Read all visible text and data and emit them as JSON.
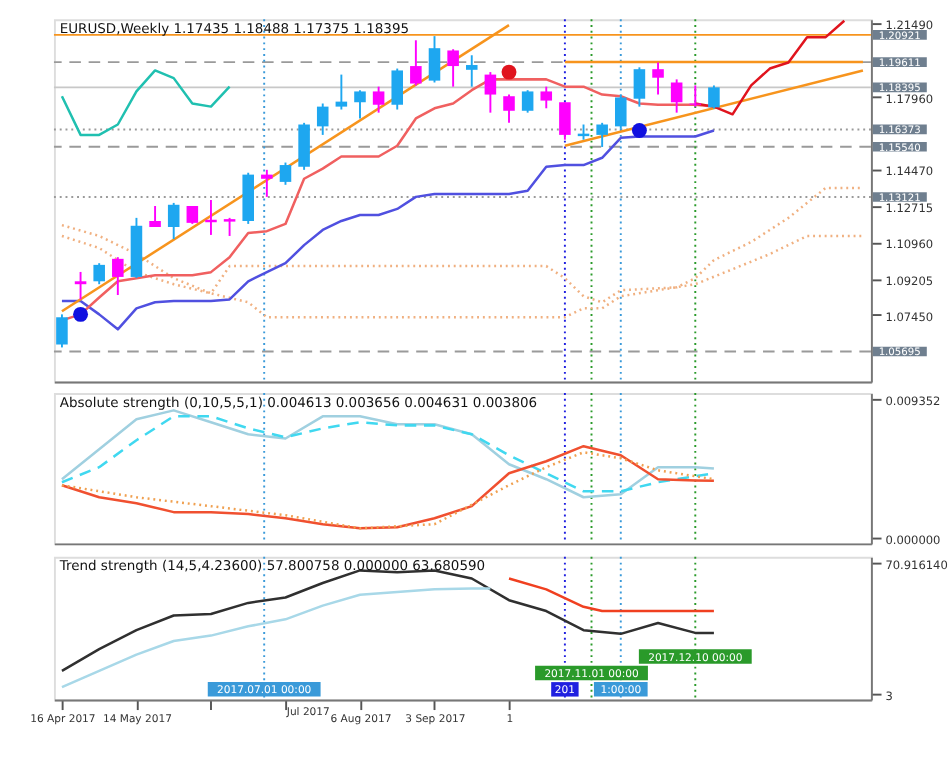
{
  "chart_data": [
    {
      "type": "candlestick",
      "title": "EURUSD,Weekly  1.17435 1.18488 1.17375 1.18395",
      "x": [
        "2017-04-16",
        "2017-04-23",
        "2017-04-30",
        "2017-05-07",
        "2017-05-14",
        "2017-05-21",
        "2017-05-28",
        "2017-06-04",
        "2017-06-11",
        "2017-06-18",
        "2017-06-25",
        "2017-07-02",
        "2017-07-09",
        "2017-07-16",
        "2017-07-23",
        "2017-07-30",
        "2017-08-06",
        "2017-08-13",
        "2017-08-20",
        "2017-08-27",
        "2017-09-03",
        "2017-09-10",
        "2017-09-17",
        "2017-09-24",
        "2017-10-01",
        "2017-10-08",
        "2017-10-15",
        "2017-10-22",
        "2017-10-29",
        "2017-11-05",
        "2017-11-12",
        "2017-11-19",
        "2017-11-26",
        "2017-12-03",
        "2017-12-10",
        "2017-12-17"
      ],
      "ohlc": [
        [
          1.0603,
          1.0748,
          1.0589,
          1.0734
        ],
        [
          1.0907,
          1.0952,
          1.082,
          1.0893
        ],
        [
          1.0907,
          1.0994,
          1.0893,
          1.0986
        ],
        [
          1.1015,
          1.1023,
          1.0841,
          1.0928
        ],
        [
          1.0928,
          1.1212,
          1.0923,
          1.1174
        ],
        [
          1.1197,
          1.1269,
          1.1168,
          1.1168
        ],
        [
          1.1168,
          1.1284,
          1.111,
          1.1275
        ],
        [
          1.1269,
          1.1269,
          1.1183,
          1.1188
        ],
        [
          1.1203,
          1.1298,
          1.113,
          1.1191
        ],
        [
          1.1206,
          1.1212,
          1.1125,
          1.1194
        ],
        [
          1.1197,
          1.1429,
          1.1183,
          1.142
        ],
        [
          1.142,
          1.1443,
          1.1313,
          1.14
        ],
        [
          1.1385,
          1.1478,
          1.1371,
          1.1466
        ],
        [
          1.1458,
          1.1669,
          1.1443,
          1.1661
        ],
        [
          1.1652,
          1.1762,
          1.1611,
          1.1747
        ],
        [
          1.1747,
          1.1901,
          1.1733,
          1.1771
        ],
        [
          1.1768,
          1.1826,
          1.169,
          1.182
        ],
        [
          1.182,
          1.1843,
          1.1718,
          1.1756
        ],
        [
          1.1756,
          1.193,
          1.1733,
          1.1921
        ],
        [
          1.1942,
          1.2066,
          1.1849,
          1.1858
        ],
        [
          1.1872,
          1.2086,
          1.1863,
          1.2028
        ],
        [
          1.2017,
          1.2023,
          1.1843,
          1.1942
        ],
        [
          1.1924,
          1.1994,
          1.1843,
          1.1947
        ],
        [
          1.1901,
          1.1913,
          1.1718,
          1.1805
        ],
        [
          1.1797,
          1.1805,
          1.1669,
          1.1727
        ],
        [
          1.1727,
          1.1826,
          1.1718,
          1.182
        ],
        [
          1.182,
          1.1843,
          1.1739,
          1.1776
        ],
        [
          1.1768,
          1.1768,
          1.1588,
          1.1611
        ],
        [
          1.1605,
          1.1661,
          1.1588,
          1.1617
        ],
        [
          1.1611,
          1.1669,
          1.1553,
          1.1661
        ],
        [
          1.1652,
          1.1805,
          1.164,
          1.1791
        ],
        [
          1.1785,
          1.1936,
          1.1747,
          1.1927
        ],
        [
          1.1927,
          1.1959,
          1.1805,
          1.1886
        ],
        [
          1.1863,
          1.1878,
          1.1718,
          1.1768
        ],
        [
          1.1762,
          1.1849,
          1.1747,
          1.1756
        ],
        [
          1.17435,
          1.18488,
          1.17375,
          1.18395
        ]
      ],
      "colors": [
        "#1ea7f0",
        "#ff00ff",
        "#1ea7f0",
        "#ff00ff",
        "#1ea7f0",
        "#ff00ff",
        "#1ea7f0",
        "#ff00ff",
        "#ff00ff",
        "#ff00ff",
        "#1ea7f0",
        "#ff00ff",
        "#1ea7f0",
        "#1ea7f0",
        "#1ea7f0",
        "#1ea7f0",
        "#1ea7f0",
        "#ff00ff",
        "#1ea7f0",
        "#ff00ff",
        "#1ea7f0",
        "#ff00ff",
        "#1ea7f0",
        "#ff00ff",
        "#ff00ff",
        "#1ea7f0",
        "#ff00ff",
        "#ff00ff",
        "#1ea7f0",
        "#1ea7f0",
        "#1ea7f0",
        "#1ea7f0",
        "#ff00ff",
        "#ff00ff",
        "#ff00ff",
        "#1ea7f0"
      ],
      "series": [
        {
          "type": "line",
          "line_style": "dotted",
          "color": "#f0b080",
          "x": [
            "2017-04-16",
            "2017-04-30",
            "2017-05-14",
            "2017-05-28",
            "2017-06-11",
            "2017-06-18",
            "2017-10-15",
            "2017-10-22",
            "2017-10-29",
            "2017-11-05",
            "2017-11-12",
            "2017-12-03",
            "2017-12-10",
            "2017-12-17",
            "2017-12-31",
            "2018-01-14",
            "2018-01-28",
            "2018-02-11"
          ],
          "values": [
            1.1177,
            1.1125,
            1.1038,
            1.0922,
            1.0849,
            1.098,
            1.098,
            1.0922,
            1.0835,
            1.0806,
            1.0864,
            1.0878,
            1.0922,
            1.1009,
            1.1096,
            1.1212,
            1.1356,
            1.1356
          ]
        },
        {
          "type": "line",
          "line_style": "dotted",
          "color": "#f0b080",
          "x": [
            "2017-04-16",
            "2017-04-30",
            "2017-05-14",
            "2017-05-28",
            "2017-06-11",
            "2017-06-25",
            "2017-07-02",
            "2017-10-22",
            "2017-10-29",
            "2017-11-05",
            "2017-11-12",
            "2017-11-26",
            "2017-12-10",
            "2017-12-24",
            "2018-01-07",
            "2018-01-21",
            "2018-02-11"
          ],
          "values": [
            1.1125,
            1.1067,
            1.0951,
            1.0893,
            1.0849,
            1.0806,
            1.0734,
            1.0734,
            1.0777,
            1.0777,
            1.0835,
            1.0864,
            1.0893,
            1.0965,
            1.1038,
            1.1125,
            1.1125
          ]
        },
        {
          "type": "line",
          "line_style": "solid",
          "color": "#20c0b0",
          "x": [
            "2017-04-16",
            "2017-04-23",
            "2017-04-30",
            "2017-05-07",
            "2017-05-14",
            "2017-05-21",
            "2017-05-28",
            "2017-06-04",
            "2017-06-11",
            "2017-06-18"
          ],
          "values": [
            1.1797,
            1.1611,
            1.1611,
            1.1661,
            1.182,
            1.1921,
            1.1884,
            1.1762,
            1.1747,
            1.1843
          ]
        },
        {
          "type": "line",
          "line_style": "solid",
          "color": "#5050e0",
          "values": [
            1.0812,
            1.0812,
            1.0748,
            1.0676,
            1.0777,
            1.0806,
            1.0812,
            1.0812,
            1.0812,
            1.082,
            1.0907,
            1.0951,
            1.0994,
            1.1081,
            1.1154,
            1.1197,
            1.1226,
            1.1226,
            1.1255,
            1.1313,
            1.1327,
            1.1327,
            1.1327,
            1.1327,
            1.1327,
            1.1342,
            1.1458,
            1.1466,
            1.1466,
            1.1501,
            1.1597,
            1.1603,
            1.1603,
            1.1603,
            1.1603,
            1.1632
          ]
        },
        {
          "type": "line",
          "line_style": "solid",
          "color": "#f06060",
          "values": [
            1.0719,
            1.0748,
            1.0829,
            1.0907,
            1.0922,
            1.0936,
            1.0936,
            1.0936,
            1.0951,
            1.1023,
            1.1139,
            1.1148,
            1.1183,
            1.14,
            1.1449,
            1.1507,
            1.1507,
            1.1507,
            1.1559,
            1.169,
            1.1739,
            1.1762,
            1.1826,
            1.1878,
            1.1878,
            1.1878,
            1.1878,
            1.1843,
            1.1843,
            1.1805,
            1.1797,
            1.1762,
            1.1756,
            1.1756,
            1.1756,
            1.1747
          ]
        },
        {
          "type": "line",
          "line_style": "solid",
          "color": "#f7941d",
          "x": [
            "2017-04-16",
            "2017-10-01"
          ],
          "values": [
            1.0763,
            1.2139
          ]
        },
        {
          "type": "line",
          "line_style": "solid",
          "color": "#f7941d",
          "x": [
            "2017-10-22",
            "2018-02-11"
          ],
          "values": [
            1.1559,
            1.1921
          ]
        },
        {
          "type": "line",
          "line_style": "solid",
          "color": "#f7941d",
          "x": [
            "2017-10-22",
            "2018-02-11"
          ],
          "values": [
            1.19611,
            1.19611
          ]
        },
        {
          "type": "line",
          "line_style": "solid",
          "color": "#e0141e",
          "x": [
            "2017-12-10",
            "2017-12-17",
            "2017-12-24",
            "2017-12-31",
            "2018-01-07",
            "2018-01-14",
            "2018-01-21",
            "2018-01-28",
            "2018-02-04"
          ],
          "values": [
            1.1762,
            1.1747,
            1.171,
            1.1849,
            1.193,
            1.1959,
            1.2081,
            1.2081,
            1.216
          ]
        },
        {
          "type": "scatter",
          "marker": "circle",
          "color": "#e0141e",
          "x": [
            "2017-10-01"
          ],
          "values": [
            1.1913
          ]
        },
        {
          "type": "scatter",
          "marker": "circle",
          "color": "#1010e0",
          "x": [
            "2017-04-23",
            "2017-11-19"
          ],
          "values": [
            1.0748,
            1.1632
          ]
        }
      ],
      "xlim": [
        "2017-04-13",
        "2018-02-14"
      ],
      "ylim": [
        1.0425,
        1.2167
      ],
      "yticks": [
        {
          "value": 1.2149,
          "label": "1.21490"
        },
        {
          "value": 1.1796,
          "label": "1.17960"
        },
        {
          "value": 1.1447,
          "label": "1.14470"
        },
        {
          "value": 1.12715,
          "label": "1.12715"
        },
        {
          "value": 1.1096,
          "label": "1.10960"
        },
        {
          "value": 1.09205,
          "label": "1.09205"
        },
        {
          "value": 1.0745,
          "label": "1.07450"
        }
      ],
      "ref_lines": [
        {
          "axis": "y",
          "value": 1.20921,
          "label": "1.20921",
          "color": "#f7941d",
          "line_style": "solid"
        },
        {
          "axis": "y",
          "value": 1.19611,
          "label": "1.19611",
          "color": "#9a9a9a",
          "line_style": "dashed"
        },
        {
          "axis": "y",
          "value": 1.18395,
          "label": "1.18395",
          "color": "#c8c8c8",
          "line_style": "solid"
        },
        {
          "axis": "y",
          "value": 1.16373,
          "label": "1.16373",
          "color": "#9a9a9a",
          "line_style": "dotted"
        },
        {
          "axis": "y",
          "value": 1.1554,
          "label": "1.15540",
          "color": "#9a9a9a",
          "line_style": "dashed"
        },
        {
          "axis": "y",
          "value": 1.13121,
          "label": "1.13121",
          "color": "#9a9a9a",
          "line_style": "dotted"
        },
        {
          "axis": "y",
          "value": 1.05695,
          "label": "1.05695",
          "color": "#9a9a9a",
          "line_style": "dashed"
        },
        {
          "axis": "x",
          "value": "2017-07-01",
          "color": "#3a9ad9",
          "line_style": "dotted"
        },
        {
          "axis": "x",
          "value": "2017-10-22",
          "color": "#2020e0",
          "line_style": "dotted"
        },
        {
          "axis": "x",
          "value": "2017-11-01",
          "color": "#2a9a2a",
          "line_style": "dotted"
        },
        {
          "axis": "x",
          "value": "2017-11-12",
          "color": "#3a9ad9",
          "line_style": "dotted"
        },
        {
          "axis": "x",
          "value": "2017-12-10",
          "color": "#2a9a2a",
          "line_style": "dotted"
        }
      ],
      "tick_labels": "y",
      "grid": false
    },
    {
      "type": "line",
      "title": "Absolute strength (0,10,5,5,1) 0.004613 0.003656 0.004631 0.003806",
      "series": [
        {
          "color": "#a0d0e0",
          "line_style": "solid",
          "x": [
            "2017-04-16",
            "2017-04-30",
            "2017-05-14",
            "2017-05-28",
            "2017-06-11",
            "2017-06-25",
            "2017-07-09",
            "2017-07-23",
            "2017-08-06",
            "2017-08-20",
            "2017-09-03",
            "2017-09-17",
            "2017-10-01",
            "2017-10-15",
            "2017-10-29",
            "2017-11-12",
            "2017-11-26",
            "2017-12-10",
            "2017-12-17"
          ],
          "values": [
            0.00391,
            0.00592,
            0.00794,
            0.00854,
            0.00774,
            0.00693,
            0.00665,
            0.00814,
            0.00814,
            0.00761,
            0.00761,
            0.00693,
            0.00492,
            0.00391,
            0.0027,
            0.0029,
            0.00472,
            0.00472,
            0.00463
          ]
        },
        {
          "color": "#40d8f0",
          "line_style": "dashed",
          "x": [
            "2017-04-16",
            "2017-04-30",
            "2017-05-14",
            "2017-05-28",
            "2017-06-11",
            "2017-06-25",
            "2017-07-09",
            "2017-07-23",
            "2017-08-06",
            "2017-08-20",
            "2017-09-03",
            "2017-09-17",
            "2017-10-01",
            "2017-10-15",
            "2017-10-29",
            "2017-11-12",
            "2017-11-26",
            "2017-12-10",
            "2017-12-17"
          ],
          "values": [
            0.00371,
            0.00472,
            0.00653,
            0.00814,
            0.00814,
            0.00733,
            0.00673,
            0.00733,
            0.00774,
            0.00753,
            0.00753,
            0.00693,
            0.00552,
            0.00431,
            0.0031,
            0.0031,
            0.00371,
            0.00411,
            0.00431
          ]
        },
        {
          "color": "#f05030",
          "line_style": "solid",
          "x": [
            "2017-04-16",
            "2017-04-30",
            "2017-05-14",
            "2017-05-28",
            "2017-06-11",
            "2017-06-25",
            "2017-07-09",
            "2017-07-23",
            "2017-08-06",
            "2017-08-20",
            "2017-09-03",
            "2017-09-17",
            "2017-10-01",
            "2017-10-15",
            "2017-10-29",
            "2017-11-12",
            "2017-11-26",
            "2017-12-10",
            "2017-12-17"
          ],
          "values": [
            0.00351,
            0.0027,
            0.0023,
            0.0017,
            0.0017,
            0.00157,
            0.00129,
            0.00089,
            0.00061,
            0.00069,
            0.00129,
            0.0021,
            0.00431,
            0.00512,
            0.00613,
            0.00552,
            0.00391,
            0.00383,
            0.00381
          ]
        },
        {
          "color": "#f0a050",
          "line_style": "dotted",
          "x": [
            "2017-04-16",
            "2017-05-14",
            "2017-06-11",
            "2017-07-09",
            "2017-08-06",
            "2017-09-03",
            "2017-10-01",
            "2017-10-15",
            "2017-10-29",
            "2017-11-12",
            "2017-11-26",
            "2017-12-10",
            "2017-12-17"
          ],
          "values": [
            0.00351,
            0.0027,
            0.0021,
            0.00149,
            0.00061,
            0.00089,
            0.00351,
            0.00472,
            0.00572,
            0.00532,
            0.00451,
            0.00411,
            0.00391
          ]
        }
      ],
      "xlim": [
        "2017-04-13",
        "2018-02-14"
      ],
      "ylim": [
        -0.0004,
        0.0097
      ],
      "yticks": [
        {
          "value": 0.009352,
          "label": "0.009352"
        },
        {
          "value": 0,
          "label": "0.000000"
        }
      ],
      "ref_lines": [
        {
          "axis": "x",
          "value": "2017-07-01",
          "color": "#3a9ad9",
          "line_style": "dotted"
        },
        {
          "axis": "x",
          "value": "2017-10-22",
          "color": "#2020e0",
          "line_style": "dotted"
        },
        {
          "axis": "x",
          "value": "2017-11-01",
          "color": "#2a9a2a",
          "line_style": "dotted"
        },
        {
          "axis": "x",
          "value": "2017-11-12",
          "color": "#3a9ad9",
          "line_style": "dotted"
        },
        {
          "axis": "x",
          "value": "2017-12-10",
          "color": "#2a9a2a",
          "line_style": "dotted"
        }
      ],
      "tick_labels": "y",
      "grid": false
    },
    {
      "type": "line",
      "title": "Trend strength (14,5,4.23600) 57.800758 0.000000 63.680590",
      "series": [
        {
          "color": "#303030",
          "line_style": "solid",
          "x": [
            "2017-04-16",
            "2017-04-30",
            "2017-05-14",
            "2017-05-28",
            "2017-06-11",
            "2017-06-25",
            "2017-07-09",
            "2017-07-23",
            "2017-08-06",
            "2017-08-20",
            "2017-09-03",
            "2017-09-17",
            "2017-10-01",
            "2017-10-15",
            "2017-10-29",
            "2017-11-12",
            "2017-11-26",
            "2017-12-10",
            "2017-12-17"
          ],
          "values": [
            14.8,
            26.0,
            35.8,
            43.4,
            44.2,
            49.9,
            52.7,
            60.2,
            66.7,
            65.8,
            66.7,
            62.5,
            51.3,
            45.7,
            35.8,
            33.9,
            39.5,
            34.4,
            34.4
          ]
        },
        {
          "color": "#a8d8e8",
          "line_style": "solid",
          "x": [
            "2017-04-16",
            "2017-04-30",
            "2017-05-14",
            "2017-05-28",
            "2017-06-11",
            "2017-06-25",
            "2017-07-09",
            "2017-07-23",
            "2017-08-06",
            "2017-08-20",
            "2017-09-03",
            "2017-09-17",
            "2017-09-24"
          ],
          "values": [
            6.4,
            14.8,
            23.2,
            30.2,
            33.0,
            37.8,
            41.4,
            48.5,
            54.1,
            55.5,
            56.9,
            57.4,
            57.4
          ]
        },
        {
          "color": "#f04020",
          "line_style": "solid",
          "x": [
            "2017-10-01",
            "2017-10-15",
            "2017-10-29",
            "2017-11-05",
            "2017-12-17"
          ],
          "values": [
            62.5,
            56.9,
            47.9,
            45.7,
            45.7
          ]
        }
      ],
      "annotations": [
        "Jul 2017"
      ],
      "xlim": [
        "2017-04-13",
        "2018-02-14"
      ],
      "ylim": [
        0,
        73.7
      ],
      "yticks": [
        {
          "value": 70.91614,
          "label": "70.916140"
        },
        {
          "value": 3,
          "label": "3"
        }
      ],
      "xticks": [
        {
          "value": "2017-04-16",
          "label": "16 Apr 2017"
        },
        {
          "value": "2017-05-14",
          "label": "14 May 2017"
        },
        {
          "value": "2017-06-11",
          "label": null
        },
        {
          "value": "2017-07-09",
          "label": null
        },
        {
          "value": "2017-08-06",
          "label": "6 Aug 2017"
        },
        {
          "value": "2017-09-03",
          "label": "3 Sep 2017"
        },
        {
          "value": "2017-10-01",
          "label": "1"
        }
      ],
      "ref_lines": [
        {
          "axis": "x",
          "value": "2017-07-01",
          "label": "2017.07.01 00:00",
          "color": "#3a9ad9",
          "line_style": "dotted"
        },
        {
          "axis": "x",
          "value": "2017-10-22",
          "label": "201",
          "color": "#2020e0",
          "line_style": "dotted"
        },
        {
          "axis": "x",
          "value": "2017-11-01",
          "label": "2017.11.01 00:00",
          "color": "#2a9a2a",
          "line_style": "dotted"
        },
        {
          "axis": "x",
          "value": "2017-11-12",
          "label": "1:00:00",
          "color": "#3a9ad9",
          "line_style": "dotted"
        },
        {
          "axis": "x",
          "value": "2017-12-10",
          "label": "2017.12.10 00:00",
          "color": "#2a9a2a",
          "line_style": "dotted"
        }
      ],
      "grid": false
    }
  ]
}
